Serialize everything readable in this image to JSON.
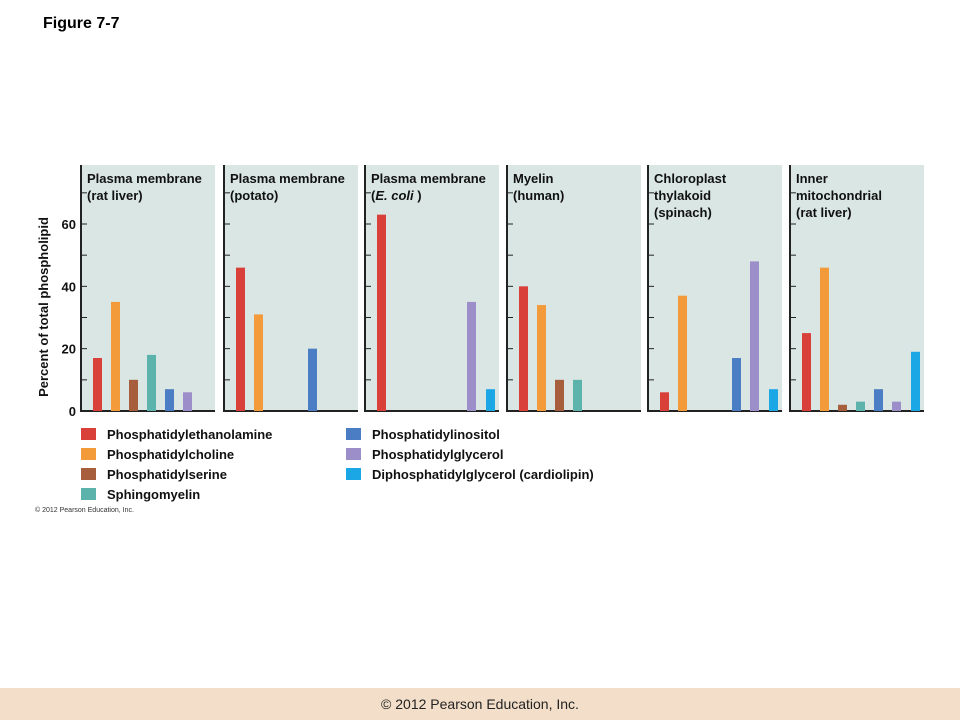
{
  "figure_title": "Figure 7-7",
  "credit_small": "© 2012 Pearson Education, Inc.",
  "footer": "© 2012 Pearson Education, Inc.",
  "colors": {
    "panel_bg": "#d9e6e3",
    "Phosphatidylethanolamine": "#d9403a",
    "Phosphatidylcholine": "#f39b3a",
    "Phosphatidylserine": "#a65e3c",
    "Sphingomyelin": "#5cb3ac",
    "Phosphatidylinositol": "#4a7dc4",
    "Phosphatidylglycerol": "#9b8ec9",
    "Diphosphatidylglycerol (cardiolipin)": "#1ba7e5"
  },
  "legend": {
    "left": [
      "Phosphatidylethanolamine",
      "Phosphatidylcholine",
      "Phosphatidylserine",
      "Sphingomyelin"
    ],
    "right": [
      "Phosphatidylinositol",
      "Phosphatidylglycerol",
      "Diphosphatidylglycerol (cardiolipin)"
    ]
  },
  "chart_data": {
    "type": "bar",
    "ylabel": "Percent of total phospholipid",
    "ylim": [
      0,
      78
    ],
    "yticks": [
      0,
      20,
      40,
      60
    ],
    "categories": [
      "Phosphatidylethanolamine",
      "Phosphatidylcholine",
      "Phosphatidylserine",
      "Sphingomyelin",
      "Phosphatidylinositol",
      "Phosphatidylglycerol",
      "Diphosphatidylglycerol (cardiolipin)"
    ],
    "panels": [
      {
        "title": [
          "Plasma membrane",
          "(rat liver)"
        ],
        "values": [
          17,
          35,
          10,
          18,
          7,
          6,
          null
        ]
      },
      {
        "title": [
          "Plasma membrane",
          "(potato)"
        ],
        "values": [
          46,
          31,
          null,
          null,
          20,
          null,
          null
        ]
      },
      {
        "title": [
          "Plasma membrane",
          "(E. coli )"
        ],
        "values": [
          63,
          null,
          null,
          null,
          null,
          35,
          7
        ]
      },
      {
        "title": [
          "Myelin",
          "(human)"
        ],
        "values": [
          40,
          34,
          10,
          10,
          null,
          null,
          null
        ]
      },
      {
        "title": [
          "Chloroplast",
          "thylakoid",
          "(spinach)"
        ],
        "values": [
          6,
          37,
          null,
          null,
          17,
          48,
          7
        ]
      },
      {
        "title": [
          "Inner",
          "mitochondrial",
          "(rat liver)"
        ],
        "values": [
          25,
          46,
          2,
          3,
          7,
          3,
          19
        ]
      }
    ]
  }
}
